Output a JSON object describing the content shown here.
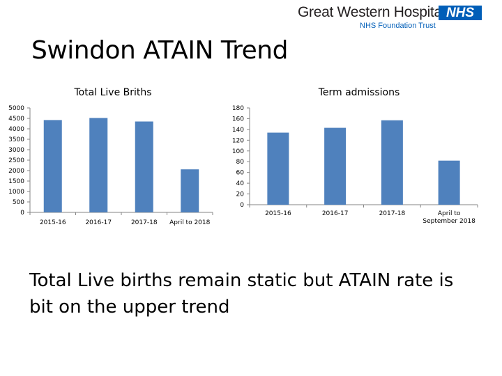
{
  "logo": {
    "name": "Great Western Hospitals",
    "badge": "NHS",
    "subtitle": "NHS Foundation Trust",
    "badge_color": "#005eb8"
  },
  "slide_title": "Swindon ATAIN Trend",
  "chart_data": [
    {
      "type": "bar",
      "title": "Total Live Briths",
      "categories": [
        "2015-16",
        "2016-17",
        "2017-18",
        "April to 2018"
      ],
      "values": [
        4420,
        4520,
        4350,
        2060
      ],
      "ylim": [
        0,
        5000
      ],
      "yticks": [
        0,
        500,
        1000,
        1500,
        2000,
        2500,
        3000,
        3500,
        4000,
        4500,
        5000
      ],
      "xlabel": "",
      "ylabel": "",
      "grid": false,
      "bar_color": "#4f81bd"
    },
    {
      "type": "bar",
      "title": "Term admissions",
      "categories": [
        "2015-16",
        "2016-17",
        "2017-18",
        "April to September 2018"
      ],
      "values": [
        134,
        143,
        157,
        82
      ],
      "ylim": [
        0,
        180
      ],
      "yticks": [
        0,
        20,
        40,
        60,
        80,
        100,
        120,
        140,
        160,
        180
      ],
      "xlabel": "",
      "ylabel": "",
      "grid": false,
      "bar_color": "#4f81bd"
    }
  ],
  "caption": "Total Live births remain static but ATAIN rate is bit on the upper trend"
}
